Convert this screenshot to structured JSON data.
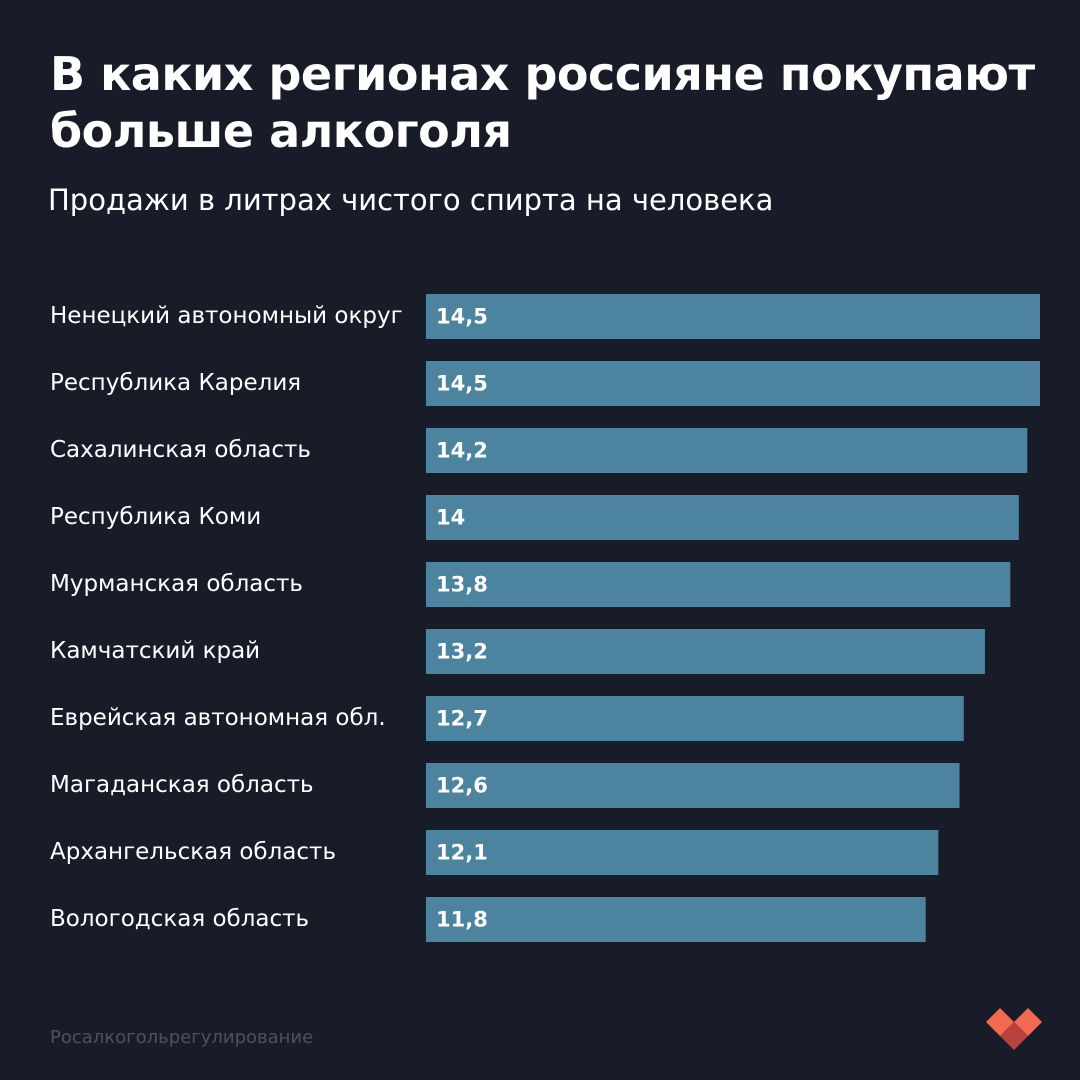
{
  "header": {
    "title": "В каких регионах россияне покупают больше алкоголя",
    "subtitle": "Продажи в литрах чистого спирта на человека"
  },
  "footer": {
    "source": "Росалкогольрегулирование"
  },
  "logo": {
    "icon": "brand-logo-icon",
    "colors": [
      "#f26a4f",
      "#b8413b"
    ]
  },
  "colors": {
    "background": "#181c29",
    "bar": "#4c849f",
    "text": "#ffffff",
    "source_text": "#4b5163"
  },
  "chart_data": {
    "type": "bar",
    "orientation": "horizontal",
    "categories": [
      "Ненецкий автономный округ",
      "Республика Карелия",
      "Сахалинская область",
      "Республика Коми",
      "Мурманская область",
      "Камчатский край",
      "Еврейская автономная обл.",
      "Магаданская область",
      "Архангельская область",
      "Вологодская область"
    ],
    "values": [
      14.5,
      14.5,
      14.2,
      14,
      13.8,
      13.2,
      12.7,
      12.6,
      12.1,
      11.8
    ],
    "value_labels": [
      "14,5",
      "14,5",
      "14,2",
      "14",
      "13,8",
      "13,2",
      "12,7",
      "12,6",
      "12,1",
      "11,8"
    ],
    "xlim": [
      0,
      14.5
    ],
    "grid": false,
    "legend": false
  }
}
